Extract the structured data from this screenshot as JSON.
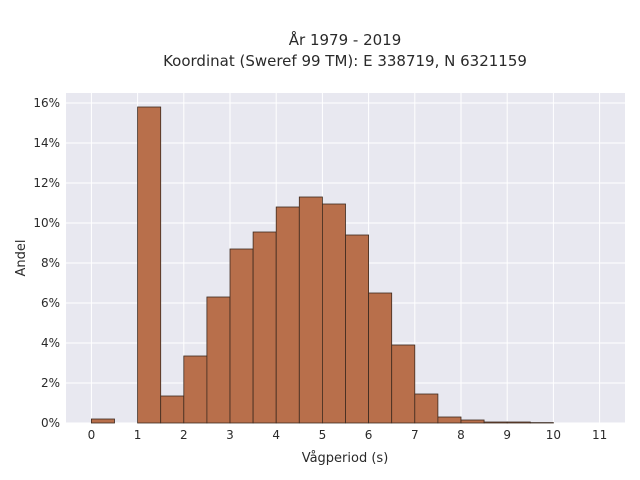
{
  "chart_data": {
    "type": "bar",
    "title_lines": [
      "År 1979 - 2019",
      "Koordinat (Sweref 99 TM): E 338719, N 6321159"
    ],
    "xlabel": "Vågperiod (s)",
    "ylabel": "Andel",
    "bin_width": 0.5,
    "xlim": [
      -0.55,
      11.55
    ],
    "ylim": [
      0,
      16.5
    ],
    "x_ticks": [
      0,
      1,
      2,
      3,
      4,
      5,
      6,
      7,
      8,
      9,
      10,
      11
    ],
    "x_tick_labels": [
      "0",
      "1",
      "2",
      "3",
      "4",
      "5",
      "6",
      "7",
      "8",
      "9",
      "10",
      "11"
    ],
    "y_ticks": [
      0,
      2,
      4,
      6,
      8,
      10,
      12,
      14,
      16
    ],
    "y_tick_labels": [
      "0%",
      "2%",
      "4%",
      "6%",
      "8%",
      "10%",
      "12%",
      "14%",
      "16%"
    ],
    "bins_start": [
      0.0,
      0.5,
      1.0,
      1.5,
      2.0,
      2.5,
      3.0,
      3.5,
      4.0,
      4.5,
      5.0,
      5.5,
      6.0,
      6.5,
      7.0,
      7.5,
      8.0,
      8.5,
      9.0,
      9.5
    ],
    "values": [
      0.2,
      0.0,
      15.8,
      1.35,
      3.35,
      6.3,
      8.7,
      9.55,
      10.8,
      11.3,
      10.95,
      9.4,
      6.5,
      3.9,
      1.45,
      0.3,
      0.15,
      0.05,
      0.05,
      0.02
    ],
    "grid": true,
    "colors": {
      "bar_fill": "#b86f4b",
      "bar_edge": "#3d2a1f",
      "plot_background": "#e8e8f0",
      "grid": "#ffffff"
    }
  }
}
